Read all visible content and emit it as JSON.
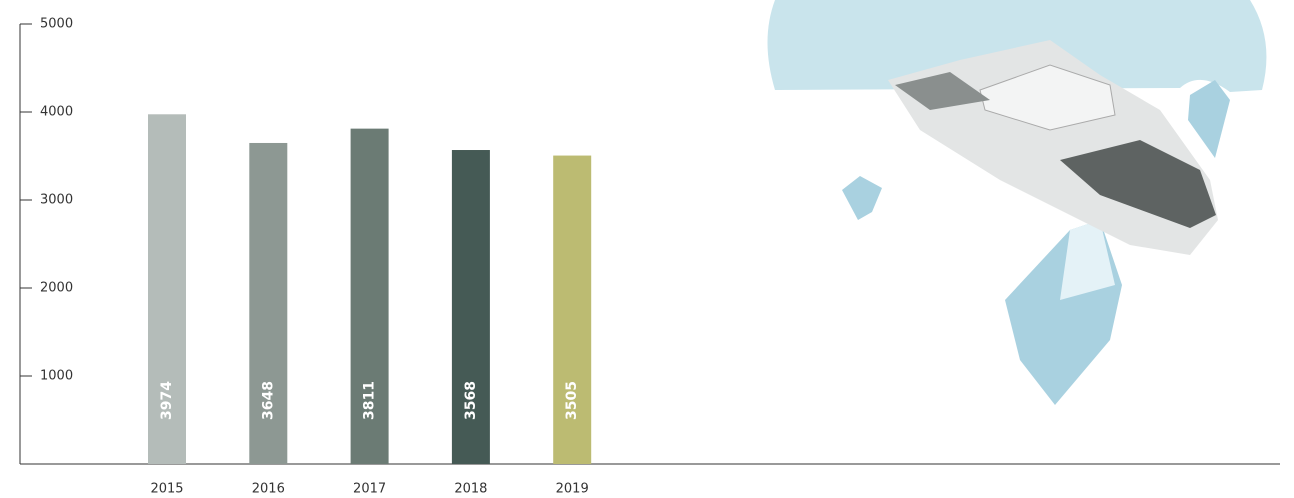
{
  "chart_data": {
    "type": "bar",
    "categories": [
      "2015",
      "2016",
      "2017",
      "2018",
      "2019"
    ],
    "values": [
      3974,
      3648,
      3811,
      3568,
      3505
    ],
    "colors": [
      "#b4bcb9",
      "#8d9893",
      "#6b7b74",
      "#455a55",
      "#bcbb72"
    ],
    "ylim": [
      0,
      5000
    ],
    "yticks": [
      1000,
      2000,
      3000,
      4000,
      5000
    ],
    "grid": false
  }
}
